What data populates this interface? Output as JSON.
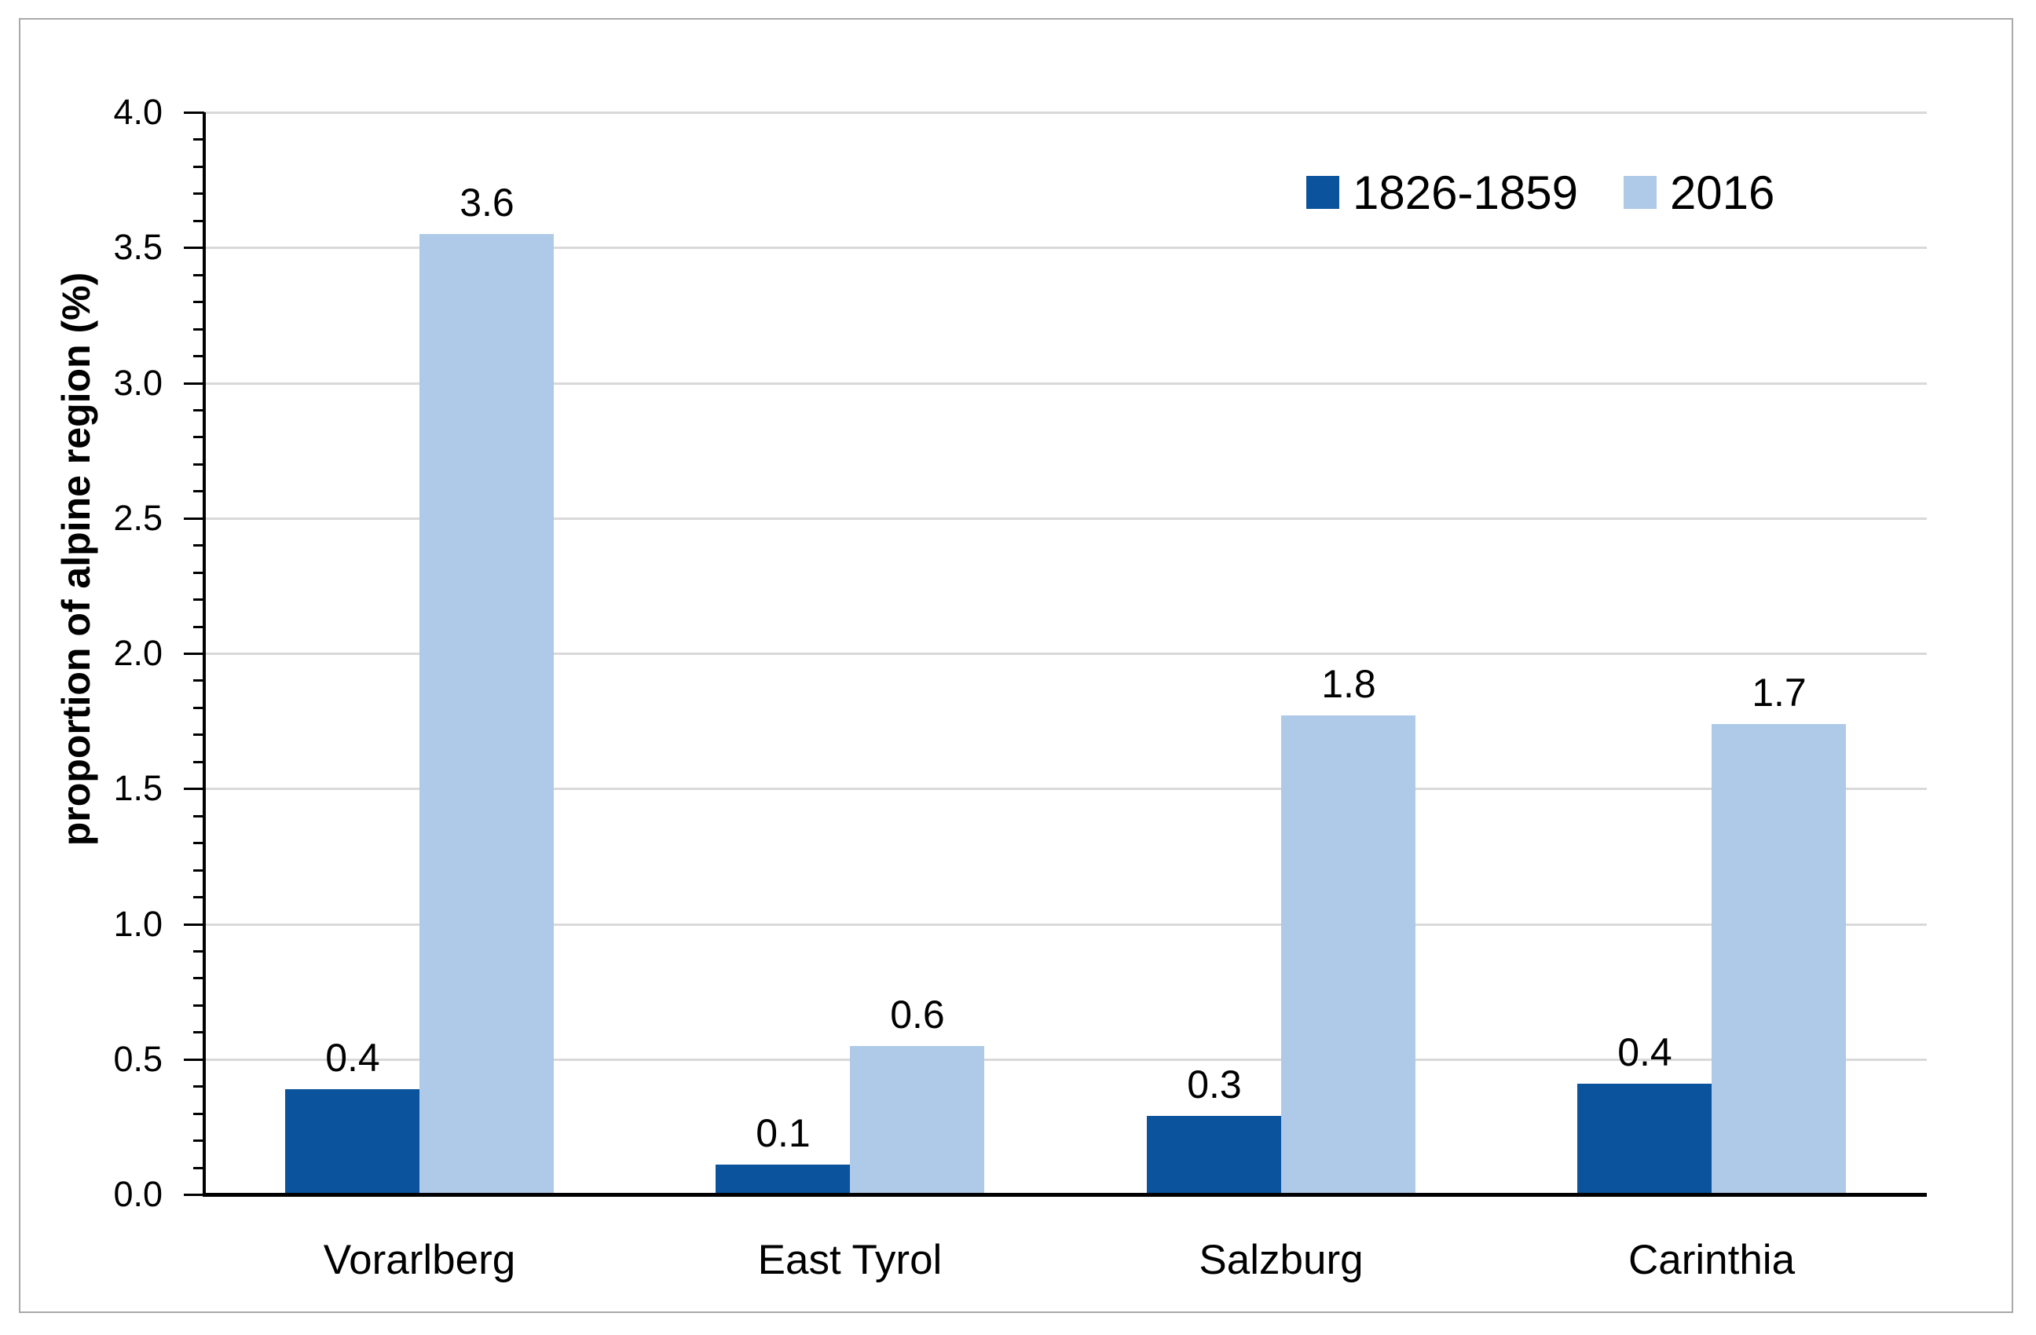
{
  "chart_data": {
    "type": "bar",
    "title": "",
    "ylabel": "proportion of alpine region (%)",
    "xlabel": "",
    "categories": [
      "Vorarlberg",
      "East Tyrol",
      "Salzburg",
      "Carinthia"
    ],
    "series": [
      {
        "name": "1826-1859",
        "color": "#0b539c",
        "values": [
          0.39,
          0.11,
          0.29,
          0.41
        ],
        "data_labels": [
          "0.4",
          "0.1",
          "0.3",
          "0.4"
        ]
      },
      {
        "name": "2016",
        "color": "#afc9e8",
        "values": [
          3.55,
          0.55,
          1.77,
          1.74
        ],
        "data_labels": [
          "3.6",
          "0.6",
          "1.8",
          "1.7"
        ]
      }
    ],
    "ylim": [
      0,
      4.0
    ],
    "ytick_step": 0.5,
    "minor_tick_step": 0.1,
    "ytick_labels": [
      "0.0",
      "0.5",
      "1.0",
      "1.5",
      "2.0",
      "2.5",
      "3.0",
      "3.5",
      "4.0"
    ],
    "grid": true,
    "legend_position": "top-right-inside",
    "colors": {
      "bar_dark": "#0b539c",
      "bar_light": "#afc9e8",
      "gridline": "#d9d9d9",
      "axis": "#000000",
      "text": "#000000",
      "frame_border": "#a9a9a9",
      "background": "#ffffff"
    }
  }
}
